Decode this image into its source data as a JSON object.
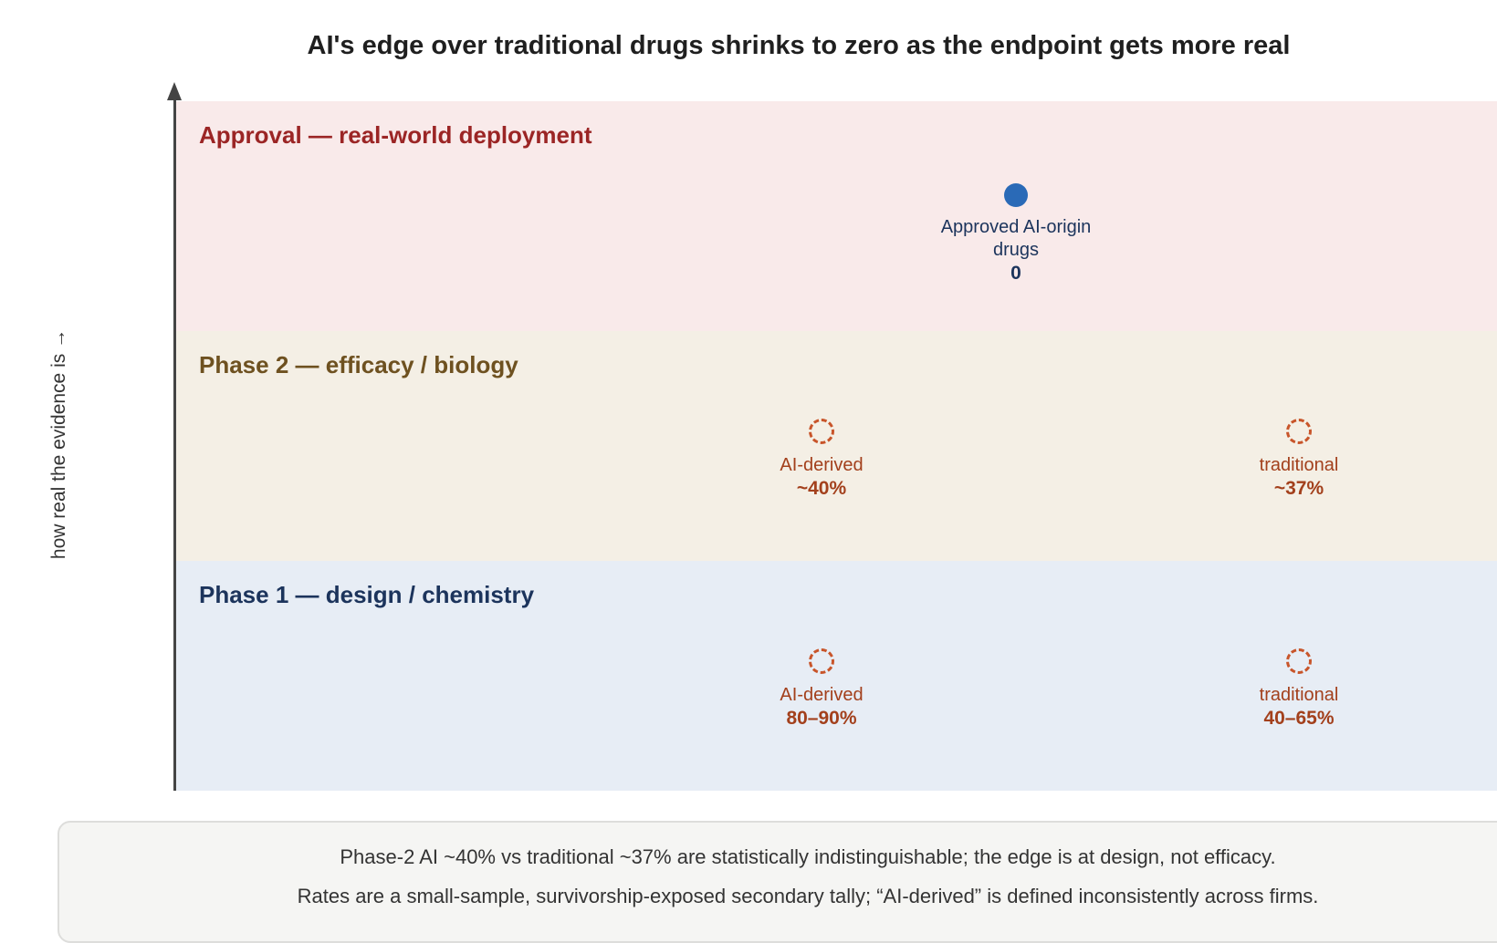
{
  "title": "AI's edge over traditional drugs shrinks to zero as the endpoint gets more real",
  "y_axis_label": "how real the evidence is →",
  "colors": {
    "approval_band": "#f9eaea",
    "approval_text": "#9b2525",
    "phase2_band": "#f4efe5",
    "phase2_text": "#6e5120",
    "phase1_band": "#e7edf5",
    "phase1_text": "#1c345c",
    "solid_marker": "#2a6ab7",
    "dashed_marker": "#c8552a",
    "dashed_text": "#a3401c",
    "solid_text": "#1c345c"
  },
  "bands": {
    "approval": {
      "label": "Approval — real-world deployment",
      "markers": [
        {
          "label": "Approved AI-origin drugs",
          "value": "0",
          "style": "solid"
        }
      ]
    },
    "phase2": {
      "label": "Phase 2 — efficacy / biology",
      "markers": [
        {
          "label": "AI-derived",
          "value": "~40%",
          "style": "dashed"
        },
        {
          "label": "traditional",
          "value": "~37%",
          "style": "dashed"
        }
      ]
    },
    "phase1": {
      "label": "Phase 1 — design / chemistry",
      "markers": [
        {
          "label": "AI-derived",
          "value": "80–90%",
          "style": "dashed"
        },
        {
          "label": "traditional",
          "value": "40–65%",
          "style": "dashed"
        }
      ]
    }
  },
  "notes": [
    "Phase-2 AI ~40% vs traditional ~37% are statistically indistinguishable; the edge is at design, not efficacy.",
    "Rates are a small-sample, survivorship-exposed secondary tally; “AI-derived” is defined inconsistently across firms."
  ]
}
